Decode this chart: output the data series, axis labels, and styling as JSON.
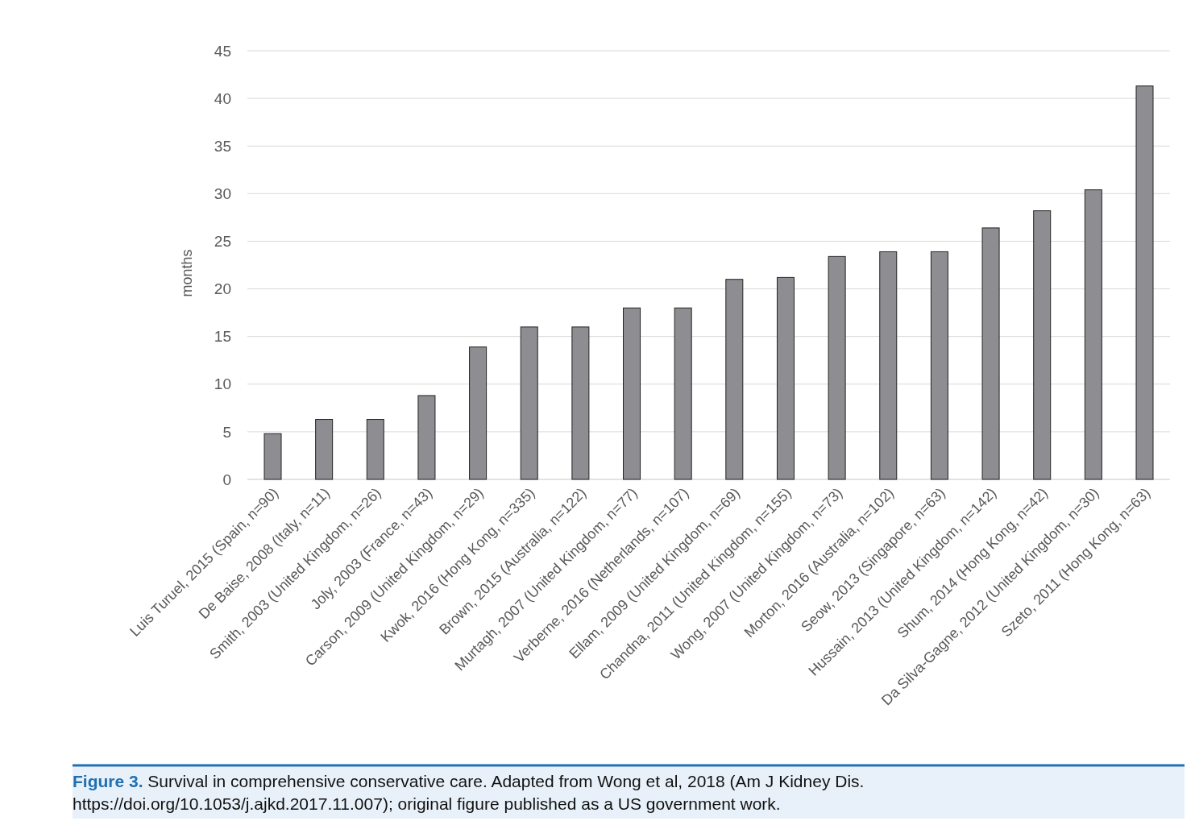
{
  "chart_data": {
    "type": "bar",
    "ylabel": "months",
    "categories": [
      "Luis Turuel, 2015 (Spain, n=90)",
      "De Baise, 2008 (Italy, n=11)",
      "Smith, 2003 (United Kingdom, n=26)",
      "Joly, 2003 (France, n=43)",
      "Carson, 2009 (United Kingdom, n=29)",
      "Kwok, 2016 (Hong Kong, n=335)",
      "Brown, 2015 (Australia, n=122)",
      "Murtagh, 2007 (United Kingdom, n=77)",
      "Verberne, 2016 (Netherlands, n=107)",
      "Ellam, 2009 (United Kingdom, n=69)",
      "Chandna, 2011 (United Kingdom, n=155)",
      "Wong, 2007 (United Kingdom, n=73)",
      "Morton, 2016 (Australia, n=102)",
      "Seow, 2013 (Singapore, n=63)",
      "Hussain, 2013 (United Kingdom, n=142)",
      "Shum, 2014 (Hong Kong, n=42)",
      "Da Silva-Gagne, 2012 (United Kingdom, n=30)",
      "Szeto, 2011 (Hong Kong, n=63)"
    ],
    "values": [
      4.8,
      6.3,
      6.3,
      8.8,
      13.9,
      16,
      16,
      18,
      18,
      21,
      21.2,
      23.4,
      23.9,
      23.9,
      26.4,
      28.2,
      30.4,
      41.3
    ],
    "color": "#8e8e92",
    "ylim": [
      0,
      45
    ],
    "yticks": [
      0,
      5,
      10,
      15,
      20,
      25,
      30,
      35,
      40,
      45
    ],
    "grid": "y",
    "annotations": [
      "Figure 3. Survival in comprehensive conservative care. Adapted from Wong et al, 2018 (Am J Kidney Dis. https://doi.org/10.1053/j.ajkd.2017.11.007); original figure published as a US government work."
    ]
  }
}
